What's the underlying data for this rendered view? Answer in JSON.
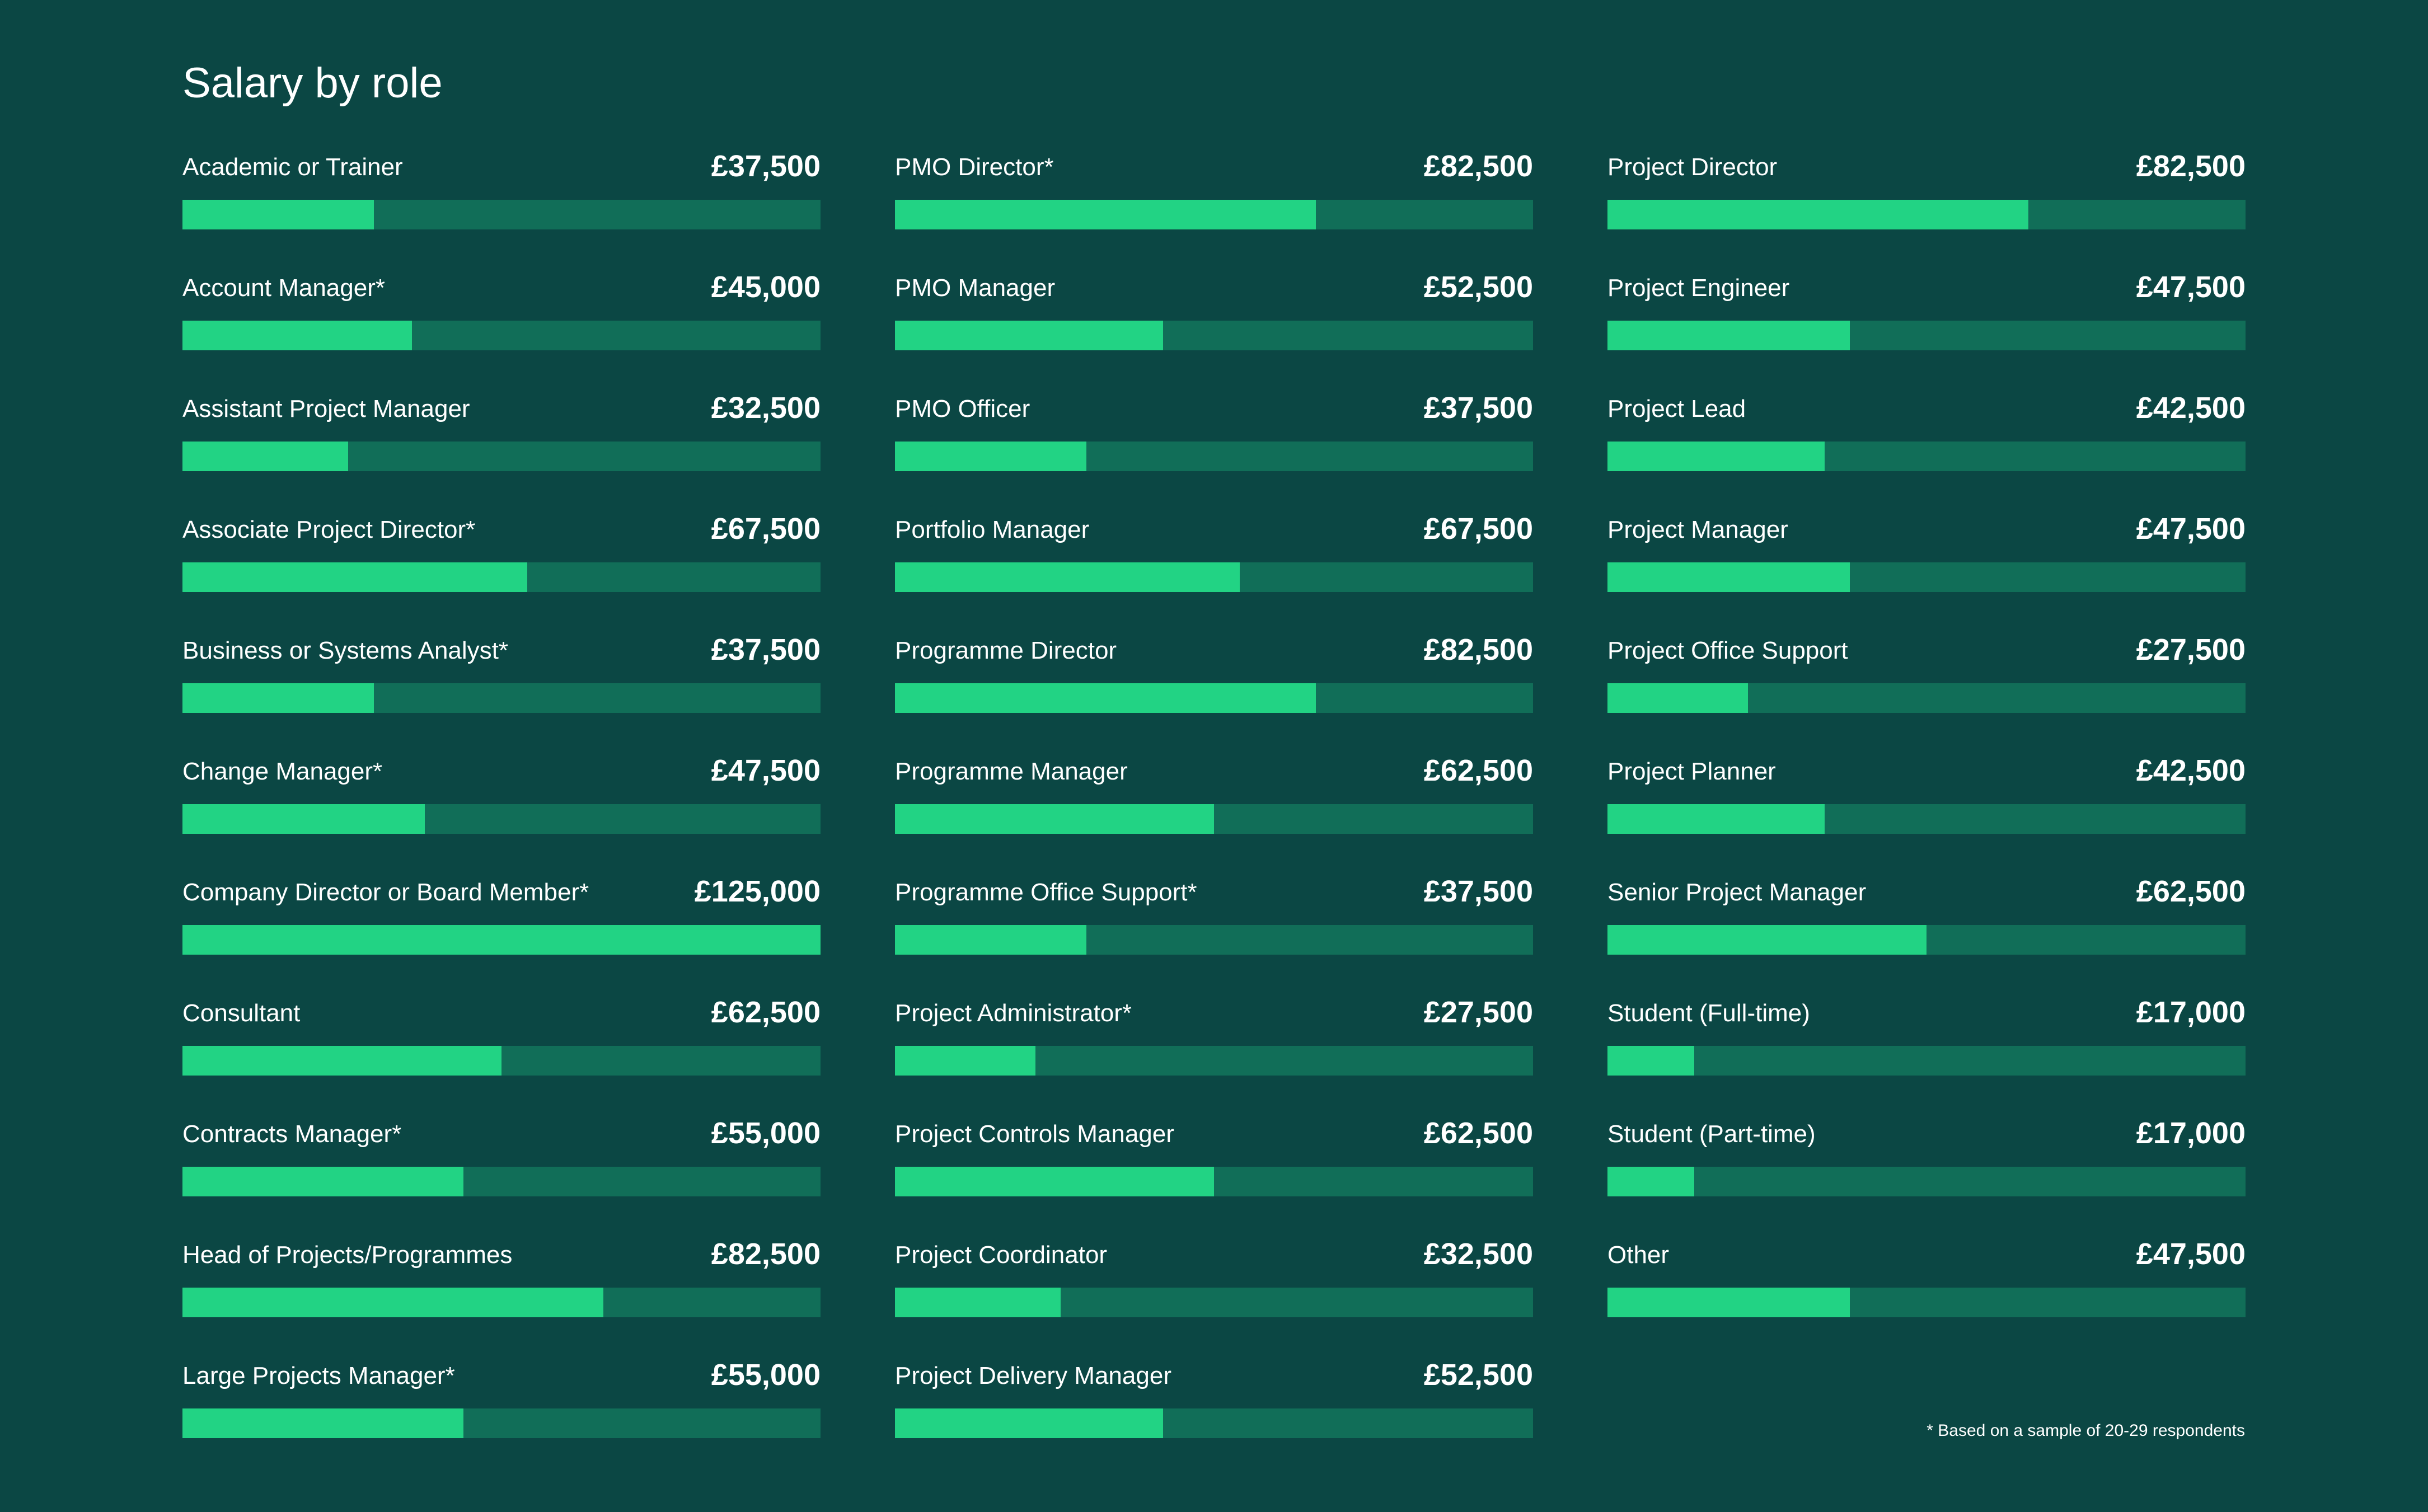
{
  "chart_data": {
    "type": "bar",
    "orientation": "horizontal",
    "title": "Salary by role",
    "xlim": [
      0,
      125000
    ],
    "currency": "£",
    "colors": {
      "background": "#0b4744",
      "track": "#116e58",
      "fill": "#22d384"
    },
    "columns": [
      [
        {
          "label": "Academic or Trainer",
          "value": 37500,
          "display": "£37,500"
        },
        {
          "label": "Account Manager*",
          "value": 45000,
          "display": "£45,000"
        },
        {
          "label": "Assistant Project Manager",
          "value": 32500,
          "display": "£32,500"
        },
        {
          "label": "Associate Project Director*",
          "value": 67500,
          "display": "£67,500"
        },
        {
          "label": "Business or Systems Analyst*",
          "value": 37500,
          "display": "£37,500"
        },
        {
          "label": "Change Manager*",
          "value": 47500,
          "display": "£47,500"
        },
        {
          "label": "Company Director or Board Member*",
          "value": 125000,
          "display": "£125,000"
        },
        {
          "label": "Consultant",
          "value": 62500,
          "display": "£62,500"
        },
        {
          "label": "Contracts Manager*",
          "value": 55000,
          "display": "£55,000"
        },
        {
          "label": "Head of Projects/Programmes",
          "value": 82500,
          "display": "£82,500"
        },
        {
          "label": "Large Projects Manager*",
          "value": 55000,
          "display": "£55,000"
        }
      ],
      [
        {
          "label": "PMO Director*",
          "value": 82500,
          "display": "£82,500"
        },
        {
          "label": "PMO Manager",
          "value": 52500,
          "display": "£52,500"
        },
        {
          "label": "PMO Officer",
          "value": 37500,
          "display": "£37,500"
        },
        {
          "label": "Portfolio Manager",
          "value": 67500,
          "display": "£67,500"
        },
        {
          "label": "Programme Director",
          "value": 82500,
          "display": "£82,500"
        },
        {
          "label": "Programme Manager",
          "value": 62500,
          "display": "£62,500"
        },
        {
          "label": "Programme Office Support*",
          "value": 37500,
          "display": "£37,500"
        },
        {
          "label": "Project Administrator*",
          "value": 27500,
          "display": "£27,500"
        },
        {
          "label": "Project Controls Manager",
          "value": 62500,
          "display": "£62,500"
        },
        {
          "label": "Project Coordinator",
          "value": 32500,
          "display": "£32,500"
        },
        {
          "label": "Project Delivery Manager",
          "value": 52500,
          "display": "£52,500"
        }
      ],
      [
        {
          "label": "Project Director",
          "value": 82500,
          "display": "£82,500"
        },
        {
          "label": "Project Engineer",
          "value": 47500,
          "display": "£47,500"
        },
        {
          "label": "Project Lead",
          "value": 42500,
          "display": "£42,500"
        },
        {
          "label": "Project Manager",
          "value": 47500,
          "display": "£47,500"
        },
        {
          "label": "Project Office Support",
          "value": 27500,
          "display": "£27,500"
        },
        {
          "label": "Project Planner",
          "value": 42500,
          "display": "£42,500"
        },
        {
          "label": "Senior Project Manager",
          "value": 62500,
          "display": "£62,500"
        },
        {
          "label": "Student (Full-time)",
          "value": 17000,
          "display": "£17,000"
        },
        {
          "label": "Student (Part-time)",
          "value": 17000,
          "display": "£17,000"
        },
        {
          "label": "Other",
          "value": 47500,
          "display": "£47,500"
        }
      ]
    ],
    "footnote": "* Based on a sample of 20-29 respondents"
  }
}
